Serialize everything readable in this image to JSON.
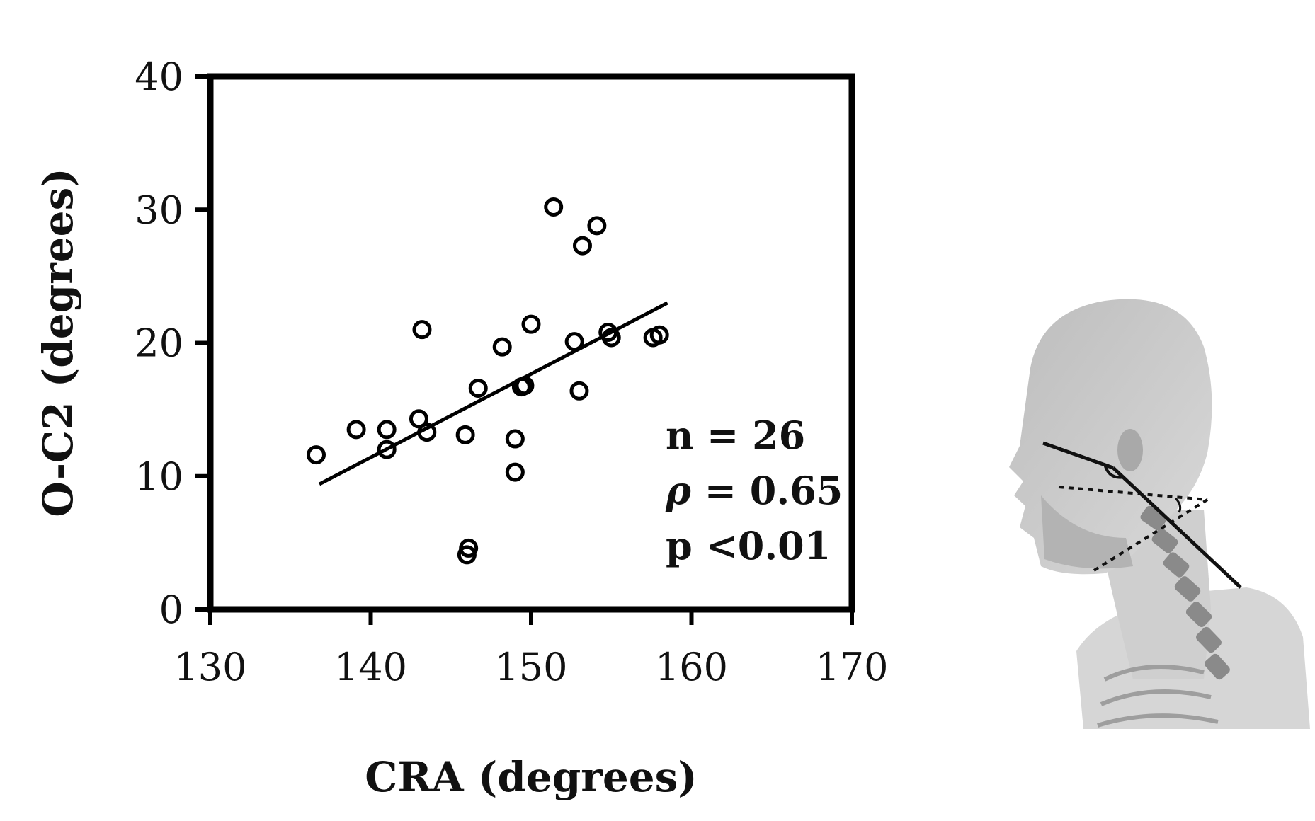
{
  "chart_data": {
    "type": "scatter",
    "xlabel": "CRA (degrees)",
    "ylabel": "O-C2 (degrees)",
    "xlim": [
      130,
      170
    ],
    "ylim": [
      0,
      40
    ],
    "x_ticks": [
      130,
      140,
      150,
      160,
      170
    ],
    "y_ticks": [
      0,
      10,
      20,
      30,
      40
    ],
    "points": [
      {
        "x": 136.6,
        "y": 11.6
      },
      {
        "x": 139.1,
        "y": 13.5
      },
      {
        "x": 141.0,
        "y": 13.5
      },
      {
        "x": 141.0,
        "y": 12.0
      },
      {
        "x": 143.0,
        "y": 14.3
      },
      {
        "x": 143.2,
        "y": 21.0
      },
      {
        "x": 143.5,
        "y": 13.3
      },
      {
        "x": 145.9,
        "y": 13.1
      },
      {
        "x": 146.0,
        "y": 4.1
      },
      {
        "x": 146.1,
        "y": 4.6
      },
      {
        "x": 146.7,
        "y": 16.6
      },
      {
        "x": 148.2,
        "y": 19.7
      },
      {
        "x": 149.0,
        "y": 12.8
      },
      {
        "x": 149.0,
        "y": 10.3
      },
      {
        "x": 149.4,
        "y": 16.7
      },
      {
        "x": 149.6,
        "y": 16.8
      },
      {
        "x": 150.0,
        "y": 21.4
      },
      {
        "x": 151.4,
        "y": 30.2
      },
      {
        "x": 152.7,
        "y": 20.1
      },
      {
        "x": 153.0,
        "y": 16.4
      },
      {
        "x": 153.2,
        "y": 27.3
      },
      {
        "x": 154.1,
        "y": 28.8
      },
      {
        "x": 154.8,
        "y": 20.8
      },
      {
        "x": 155.0,
        "y": 20.4
      },
      {
        "x": 157.6,
        "y": 20.4
      },
      {
        "x": 158.0,
        "y": 20.6
      }
    ],
    "trendline": {
      "x": [
        136.8,
        158.5
      ],
      "y": [
        9.4,
        23.0
      ]
    },
    "annotation": {
      "n": "n = 26",
      "rho_symbol": "ρ",
      "rho_value": " = 0.65",
      "p": "p <0.01"
    }
  },
  "illustration": {
    "icon": "head-neck-cervical-spine-icon",
    "colors": {
      "skin": "#c8c8c8",
      "shade": "#9a9a9a",
      "bone": "#7a7a7a",
      "line": "#111111"
    }
  }
}
